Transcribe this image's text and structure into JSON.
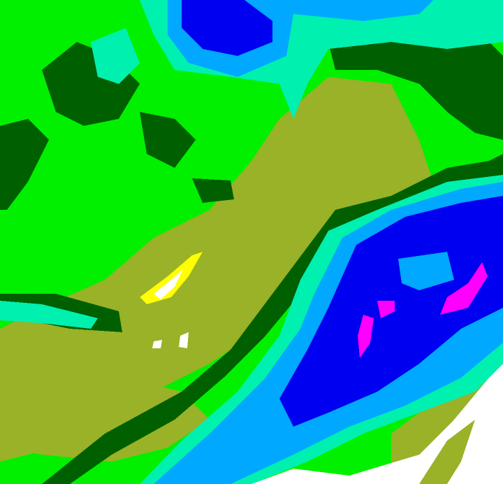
{
  "palette": {
    "green": "#00f000",
    "olive": "#99b227",
    "dark_green": "#006000",
    "aquamarine": "#00f0b0",
    "light_blue": "#00a8ff",
    "medium_blue": "#3a3aff",
    "blue": "#0000f0",
    "magenta": "#ff00ff",
    "yellow": "#ffff00",
    "white": "#ffffff"
  }
}
